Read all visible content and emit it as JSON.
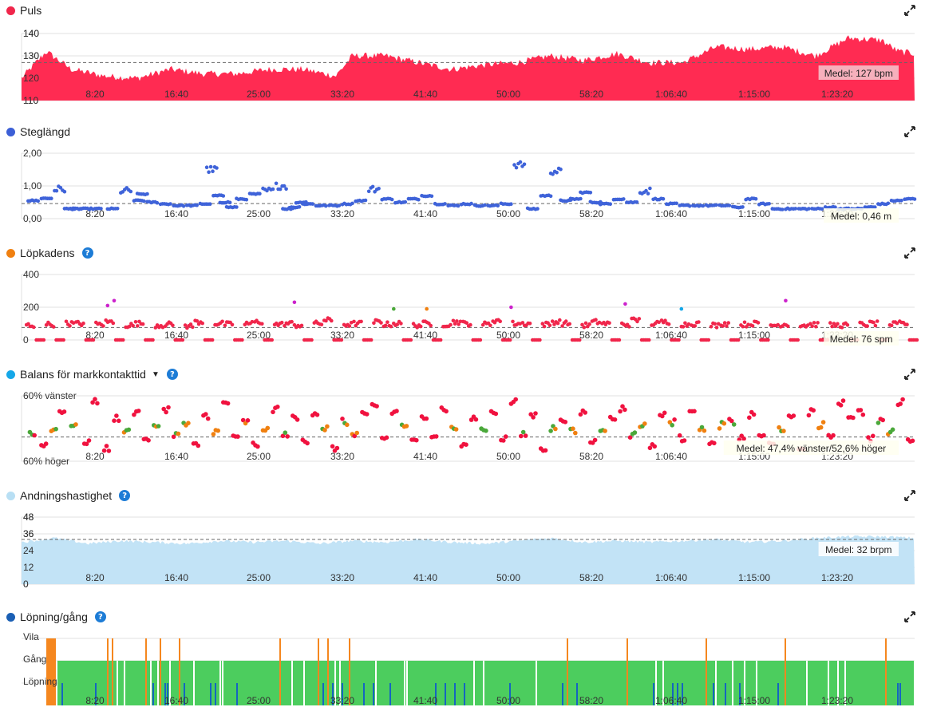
{
  "x_ticks": [
    "8:20",
    "16:40",
    "25:00",
    "33:20",
    "41:40",
    "50:00",
    "58:20",
    "1:06:40",
    "1:15:00",
    "1:23:20"
  ],
  "x_range_seconds": [
    0,
    5400
  ],
  "panels": {
    "puls": {
      "title": "Puls",
      "dot_color": "#f0264b",
      "medel": "Medel: 127 bpm",
      "y_ticks": [
        "140",
        "130",
        "120",
        "110"
      ],
      "has_help": false,
      "has_dropdown": false
    },
    "steglangd": {
      "title": "Steglängd",
      "dot_color": "#3c5fd6",
      "medel": "Medel: 0,46 m",
      "y_ticks": [
        "2,00",
        "1,00",
        "0,00"
      ],
      "has_help": false,
      "has_dropdown": false
    },
    "lopkadens": {
      "title": "Löpkadens",
      "dot_color": "#f08010",
      "medel": "Medel: 76 spm",
      "y_ticks": [
        "400",
        "200",
        "0"
      ],
      "has_help": true,
      "has_dropdown": false
    },
    "balans": {
      "title": "Balans för markkontakttid",
      "dot_color": "#15a7e8",
      "medel": "Medel: 47,4% vänster/52,6% höger",
      "y_ticks": [
        "60% vänster",
        "60% höger"
      ],
      "has_help": true,
      "has_dropdown": true
    },
    "andning": {
      "title": "Andningshastighet",
      "dot_color": "#b8dff4",
      "medel": "Medel: 32 brpm",
      "y_ticks": [
        "48",
        "36",
        "24",
        "12",
        "0"
      ],
      "has_help": true,
      "has_dropdown": false
    },
    "lopning": {
      "title": "Löpning/gång",
      "dot_color": "#1a5fb4",
      "medel": "",
      "y_ticks": [
        "Vila",
        "Gång",
        "Löpning"
      ],
      "has_help": true,
      "has_dropdown": false
    }
  },
  "chart_data": [
    {
      "type": "area",
      "title": "Puls",
      "x_unit": "seconds",
      "ylim": [
        110,
        140
      ],
      "mean": 127,
      "color": "#ff2b52",
      "x": [
        0,
        150,
        300,
        500,
        700,
        900,
        1100,
        1300,
        1500,
        1700,
        1900,
        2000,
        2200,
        2400,
        2600,
        2800,
        3000,
        3200,
        3400,
        3600,
        3800,
        4000,
        4200,
        4400,
        4600,
        4800,
        5000,
        5200,
        5300,
        5400
      ],
      "y": [
        120,
        132,
        124,
        121,
        120,
        124,
        122,
        122,
        124,
        124,
        121,
        130,
        130,
        127,
        124,
        126,
        127,
        130,
        128,
        131,
        127,
        127,
        134,
        133,
        134,
        130,
        138,
        137,
        132,
        131
      ]
    },
    {
      "type": "scatter",
      "title": "Steglängd",
      "x_unit": "seconds",
      "ylim": [
        0,
        2
      ],
      "mean": 0.46,
      "color": "#3f63d9",
      "x": [
        40,
        120,
        200,
        260,
        300,
        350,
        420,
        520,
        600,
        680,
        700,
        760,
        840,
        920,
        1000,
        1080,
        1120,
        1160,
        1200,
        1240,
        1300,
        1380,
        1460,
        1540,
        1580,
        1620,
        1660,
        1700,
        1780,
        1860,
        1940,
        2020,
        2100,
        2180,
        2260,
        2340,
        2420,
        2500,
        2580,
        2660,
        2740,
        2820,
        2900,
        2980,
        3060,
        3140,
        3200,
        3260,
        3320,
        3380,
        3440,
        3500,
        3580,
        3660,
        3740,
        3820,
        3900,
        3980,
        4060,
        4140,
        4220,
        4300,
        4380,
        4460,
        4540,
        4620,
        4700,
        4780,
        4860,
        4940,
        5020,
        5100,
        5180,
        5260,
        5340
      ],
      "y": [
        0.55,
        0.62,
        0.9,
        0.3,
        0.3,
        0.3,
        0.3,
        0.3,
        0.85,
        0.55,
        0.75,
        0.5,
        0.45,
        0.4,
        0.4,
        0.45,
        1.5,
        0.7,
        0.5,
        0.35,
        0.6,
        0.75,
        0.85,
        1.0,
        0.3,
        0.35,
        0.5,
        0.45,
        0.4,
        0.4,
        0.45,
        0.55,
        0.9,
        0.6,
        0.5,
        0.6,
        0.7,
        0.45,
        0.4,
        0.45,
        0.4,
        0.4,
        0.45,
        1.65,
        0.3,
        0.7,
        1.45,
        0.55,
        0.6,
        0.8,
        0.5,
        0.45,
        0.6,
        0.5,
        0.85,
        0.6,
        0.45,
        0.4,
        0.4,
        0.4,
        0.4,
        0.35,
        0.6,
        0.45,
        0.3,
        0.3,
        0.3,
        0.3,
        0.35,
        0.3,
        0.3,
        0.35,
        0.45,
        0.55,
        0.6
      ]
    },
    {
      "type": "scatter",
      "title": "Löpkadens",
      "x_unit": "seconds",
      "ylim": [
        0,
        400
      ],
      "mean": 76,
      "color": "#f0264b",
      "x": [
        30,
        90,
        150,
        210,
        270,
        330,
        390,
        450,
        510,
        570,
        630,
        690,
        750,
        810,
        870,
        930,
        990,
        1050,
        1110,
        1170,
        1230,
        1290,
        1350,
        1410,
        1470,
        1530,
        1590,
        1650,
        1710,
        1770,
        1830,
        1890,
        1950,
        2010,
        2070,
        2130,
        2190,
        2250,
        2310,
        2370,
        2430,
        2490,
        2550,
        2610,
        2670,
        2730,
        2790,
        2850,
        2910,
        2970,
        3030,
        3090,
        3150,
        3210,
        3270,
        3330,
        3390,
        3450,
        3510,
        3570,
        3630,
        3690,
        3750,
        3810,
        3870,
        3930,
        3990,
        4050,
        4110,
        4170,
        4230,
        4290,
        4350,
        4410,
        4470,
        4530,
        4590,
        4650,
        4710,
        4770,
        4830,
        4890,
        4950,
        5010,
        5070,
        5130,
        5190,
        5250,
        5310,
        5370
      ],
      "y": [
        90,
        0,
        95,
        0,
        100,
        100,
        0,
        95,
        110,
        0,
        90,
        100,
        0,
        90,
        95,
        0,
        85,
        110,
        0,
        100,
        95,
        0,
        100,
        110,
        0,
        95,
        100,
        90,
        0,
        100,
        120,
        0,
        95,
        100,
        0,
        110,
        95,
        100,
        0,
        90,
        100,
        0,
        95,
        110,
        100,
        0,
        95,
        120,
        0,
        100,
        100,
        0,
        95,
        110,
        100,
        0,
        90,
        110,
        100,
        0,
        95,
        120,
        0,
        100,
        110,
        0,
        95,
        100,
        0,
        90,
        100,
        0,
        95,
        100,
        0,
        90,
        95,
        0,
        90,
        95,
        0,
        90,
        90,
        0,
        95,
        100,
        0,
        95,
        100,
        0
      ]
    },
    {
      "type": "scatter",
      "title": "Balans för markkontakttid",
      "x_unit": "seconds",
      "y_unit": "percent left minus 50 (positive = vänster)",
      "ylim": [
        -10,
        10
      ],
      "mean_label": "Medel: 47,4% vänster/52,6% höger",
      "x": [
        50,
        120,
        180,
        230,
        300,
        380,
        430,
        500,
        560,
        620,
        680,
        740,
        800,
        860,
        920,
        980,
        1040,
        1100,
        1160,
        1220,
        1280,
        1340,
        1400,
        1460,
        1520,
        1580,
        1640,
        1700,
        1760,
        1820,
        1880,
        1940,
        2000,
        2060,
        2120,
        2180,
        2240,
        2300,
        2360,
        2420,
        2480,
        2540,
        2600,
        2660,
        2720,
        2780,
        2840,
        2900,
        2960,
        3020,
        3080,
        3140,
        3200,
        3260,
        3320,
        3380,
        3440,
        3500,
        3560,
        3620,
        3680,
        3740,
        3800,
        3860,
        3920,
        3980,
        4040,
        4100,
        4160,
        4220,
        4280,
        4340,
        4400,
        4460,
        4520,
        4580,
        4640,
        4700,
        4760,
        4820,
        4880,
        4940,
        5000,
        5060,
        5120,
        5180,
        5240,
        5300,
        5360
      ],
      "y": [
        -2,
        -5,
        0,
        5,
        1,
        -4,
        8,
        -6,
        3,
        -1,
        5,
        -3,
        0,
        6,
        -2,
        1,
        -5,
        4,
        -1,
        8,
        -3,
        2,
        -5,
        0,
        6,
        -2,
        3,
        -4,
        5,
        0,
        -6,
        2,
        -2,
        4,
        7,
        -3,
        5,
        1,
        -4,
        4,
        -2,
        6,
        0,
        -5,
        3,
        -1,
        5,
        -3,
        8,
        -2,
        4,
        -6,
        0,
        3,
        -1,
        5,
        -4,
        0,
        3,
        6,
        -2,
        1,
        -5,
        4,
        2,
        -3,
        6,
        0,
        -5,
        1,
        2,
        -3,
        4,
        -2,
        -5,
        0,
        3,
        -6,
        5,
        1,
        -2,
        8,
        4,
        5,
        -3,
        2,
        -1,
        8,
        -3
      ],
      "colors": [
        "red",
        "orange",
        "green"
      ]
    },
    {
      "type": "area",
      "title": "Andningshastighet",
      "x_unit": "seconds",
      "ylim": [
        0,
        48
      ],
      "mean": 32,
      "color": "#c2e3f6",
      "x": [
        0,
        200,
        400,
        600,
        800,
        1000,
        1200,
        1400,
        1600,
        1800,
        2000,
        2200,
        2400,
        2600,
        2800,
        3000,
        3200,
        3400,
        3600,
        3800,
        4000,
        4200,
        4400,
        4600,
        4800,
        5000,
        5200,
        5400
      ],
      "y": [
        30,
        33,
        29,
        31,
        30,
        29,
        31,
        30,
        31,
        29,
        31,
        30,
        32,
        30,
        29,
        31,
        33,
        30,
        31,
        30,
        31,
        32,
        30,
        31,
        33,
        34,
        34,
        33
      ]
    },
    {
      "type": "bar",
      "title": "Löpning/gång",
      "x_unit": "seconds",
      "categories": [
        "Vila",
        "Gång",
        "Löpning"
      ],
      "dominant_state": "Gång",
      "colors": {
        "Vila": "#f5871f",
        "Gång": "#4ccd5e",
        "Löpning": "#1565c0"
      }
    }
  ]
}
